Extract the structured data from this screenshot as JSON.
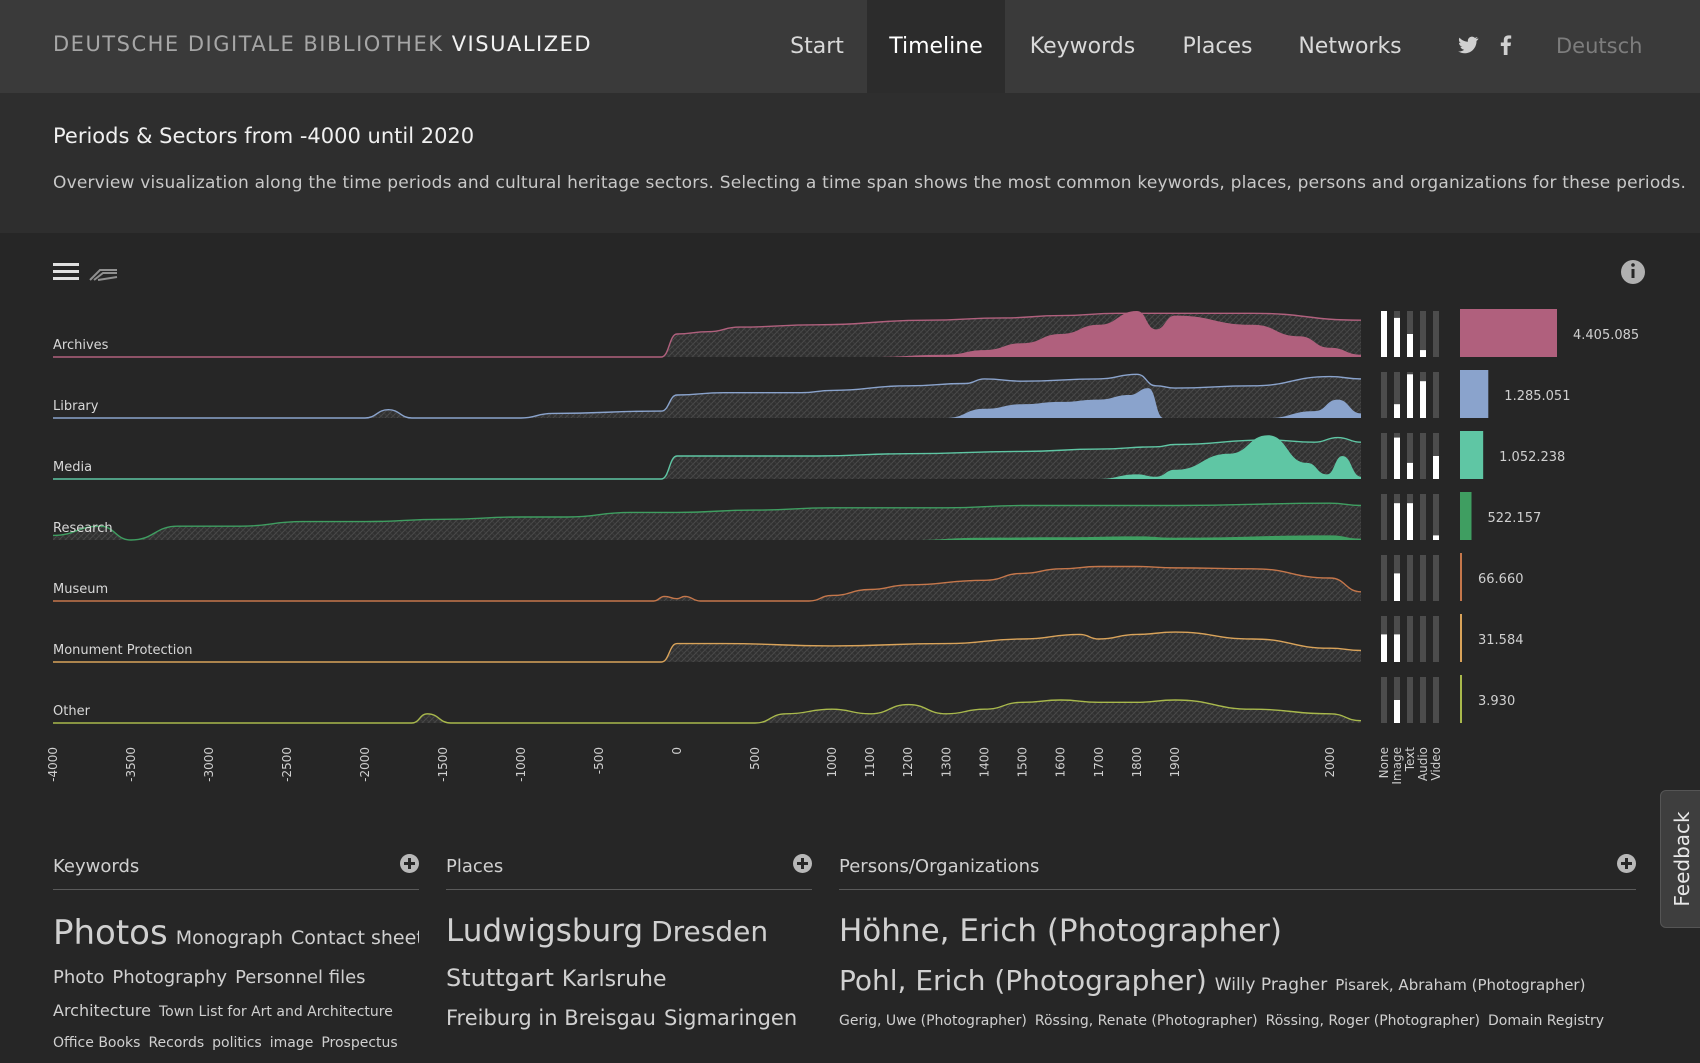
{
  "header": {
    "brand_light": "DEUTSCHE DIGITALE BIBLIOTHEK",
    "brand_strong": "VISUALIZED",
    "nav": [
      {
        "label": "Start",
        "active": false
      },
      {
        "label": "Timeline",
        "active": true
      },
      {
        "label": "Keywords",
        "active": false
      },
      {
        "label": "Places",
        "active": false
      },
      {
        "label": "Networks",
        "active": false
      }
    ],
    "social_icons": [
      "twitter-icon",
      "facebook-icon"
    ],
    "language": "Deutsch"
  },
  "intro": {
    "title": "Periods & Sectors from -4000 until 2020",
    "description": "Overview visualization along the time periods and cultural heritage sectors. Selecting a time span shows the most common keywords, places, persons and organizations for these periods."
  },
  "toolbar_icons": [
    "menu-icon",
    "stream-icon",
    "info-icon"
  ],
  "chart_data": {
    "type": "area",
    "x_ticks": [
      "-4000",
      "-3500",
      "-3000",
      "-2500",
      "-2000",
      "-1500",
      "-1000",
      "-500",
      "0",
      "500",
      "1000",
      "1100",
      "1200",
      "1300",
      "1400",
      "1500",
      "1600",
      "1700",
      "1800",
      "1900",
      "2000"
    ],
    "media_types": [
      "None",
      "Image",
      "Text",
      "Audio",
      "Video"
    ],
    "series": [
      {
        "name": "Archives",
        "color": "#b0607d",
        "total": 4405085,
        "total_label": "4.405.085",
        "media": [
          1.0,
          0.85,
          0.5,
          0.15,
          0.0
        ],
        "overview": [
          [
            -4000,
            0
          ],
          [
            -100,
            0
          ],
          [
            0,
            0.5
          ],
          [
            200,
            0.55
          ],
          [
            400,
            0.65
          ],
          [
            900,
            0.7
          ],
          [
            1250,
            0.8
          ],
          [
            1450,
            0.85
          ],
          [
            1600,
            0.9
          ],
          [
            1750,
            0.95
          ],
          [
            1850,
            0.95
          ],
          [
            1950,
            0.95
          ],
          [
            2020,
            0.8
          ]
        ],
        "selected": [
          [
            -4000,
            0
          ],
          [
            1100,
            0
          ],
          [
            1300,
            0.05
          ],
          [
            1400,
            0.15
          ],
          [
            1500,
            0.3
          ],
          [
            1600,
            0.5
          ],
          [
            1700,
            0.7
          ],
          [
            1800,
            1.0
          ],
          [
            1850,
            0.6
          ],
          [
            1900,
            0.9
          ],
          [
            1950,
            0.7
          ],
          [
            1980,
            0.45
          ],
          [
            2000,
            0.2
          ],
          [
            2020,
            0.05
          ]
        ]
      },
      {
        "name": "Library",
        "color": "#8aa3cc",
        "total": 1285051,
        "total_label": "1.285.051",
        "media": [
          0.0,
          0.3,
          0.95,
          0.8,
          0.0
        ],
        "overview": [
          [
            -4000,
            0
          ],
          [
            -2000,
            0
          ],
          [
            -1850,
            0.18
          ],
          [
            -1700,
            0
          ],
          [
            -1000,
            0
          ],
          [
            -800,
            0.1
          ],
          [
            -100,
            0.15
          ],
          [
            0,
            0.5
          ],
          [
            300,
            0.55
          ],
          [
            800,
            0.55
          ],
          [
            1000,
            0.6
          ],
          [
            1200,
            0.7
          ],
          [
            1350,
            0.75
          ],
          [
            1400,
            0.85
          ],
          [
            1500,
            0.8
          ],
          [
            1700,
            0.85
          ],
          [
            1800,
            0.95
          ],
          [
            1850,
            0.7
          ],
          [
            1900,
            0.65
          ],
          [
            1950,
            0.7
          ],
          [
            2000,
            0.9
          ],
          [
            2020,
            0.85
          ]
        ],
        "selected": [
          [
            -4000,
            0
          ],
          [
            1300,
            0
          ],
          [
            1400,
            0.2
          ],
          [
            1500,
            0.3
          ],
          [
            1600,
            0.35
          ],
          [
            1700,
            0.4
          ],
          [
            1780,
            0.5
          ],
          [
            1830,
            0.65
          ],
          [
            1870,
            0.0
          ],
          [
            1960,
            0.0
          ],
          [
            1990,
            0.15
          ],
          [
            2005,
            0.4
          ],
          [
            2020,
            0.1
          ]
        ]
      },
      {
        "name": "Media",
        "color": "#5fc6a4",
        "total": 1052238,
        "total_label": "1.052.238",
        "media": [
          0.0,
          0.9,
          0.35,
          0.0,
          0.5
        ],
        "overview": [
          [
            -4000,
            0
          ],
          [
            -100,
            0
          ],
          [
            0,
            0.5
          ],
          [
            200,
            0.5
          ],
          [
            900,
            0.5
          ],
          [
            1200,
            0.55
          ],
          [
            1500,
            0.6
          ],
          [
            1700,
            0.65
          ],
          [
            1850,
            0.7
          ],
          [
            1900,
            0.75
          ],
          [
            1960,
            0.85
          ],
          [
            1990,
            0.8
          ],
          [
            2005,
            0.9
          ],
          [
            2020,
            0.8
          ]
        ],
        "selected": [
          [
            -4000,
            0
          ],
          [
            1700,
            0
          ],
          [
            1800,
            0.1
          ],
          [
            1850,
            0.05
          ],
          [
            1900,
            0.2
          ],
          [
            1935,
            0.55
          ],
          [
            1960,
            0.95
          ],
          [
            1985,
            0.35
          ],
          [
            1998,
            0.1
          ],
          [
            2008,
            0.5
          ],
          [
            2020,
            0.05
          ]
        ]
      },
      {
        "name": "Research",
        "color": "#3f9e61",
        "total": 522157,
        "total_label": "522.157",
        "media": [
          0.0,
          0.8,
          0.8,
          0.0,
          0.1
        ],
        "overview": [
          [
            -4000,
            0.1
          ],
          [
            -3700,
            0.3
          ],
          [
            -3500,
            0
          ],
          [
            -3200,
            0.3
          ],
          [
            -2800,
            0.3
          ],
          [
            -2400,
            0.4
          ],
          [
            -2000,
            0.4
          ],
          [
            -1500,
            0.45
          ],
          [
            -1000,
            0.5
          ],
          [
            -700,
            0.5
          ],
          [
            -300,
            0.6
          ],
          [
            0,
            0.6
          ],
          [
            500,
            0.65
          ],
          [
            1000,
            0.7
          ],
          [
            1300,
            0.7
          ],
          [
            1500,
            0.75
          ],
          [
            1700,
            0.75
          ],
          [
            1800,
            0.75
          ],
          [
            1900,
            0.75
          ],
          [
            2000,
            0.8
          ],
          [
            2020,
            0.75
          ]
        ],
        "selected": [
          [
            -4000,
            0
          ],
          [
            1200,
            0
          ],
          [
            1400,
            0.05
          ],
          [
            1600,
            0.06
          ],
          [
            1800,
            0.08
          ],
          [
            1900,
            0.05
          ],
          [
            2000,
            0.1
          ],
          [
            2020,
            0.03
          ]
        ]
      },
      {
        "name": "Museum",
        "color": "#c5774b",
        "total": 66660,
        "total_label": "66.660",
        "media": [
          0.0,
          0.6,
          0.0,
          0.0,
          0.0
        ],
        "overview": [
          [
            -4000,
            0
          ],
          [
            -150,
            0
          ],
          [
            -80,
            0.1
          ],
          [
            0,
            0.05
          ],
          [
            50,
            0.1
          ],
          [
            150,
            0
          ],
          [
            850,
            0
          ],
          [
            1000,
            0.12
          ],
          [
            1100,
            0.25
          ],
          [
            1200,
            0.35
          ],
          [
            1400,
            0.45
          ],
          [
            1500,
            0.6
          ],
          [
            1600,
            0.7
          ],
          [
            1700,
            0.75
          ],
          [
            1800,
            0.75
          ],
          [
            1900,
            0.72
          ],
          [
            1950,
            0.7
          ],
          [
            2000,
            0.5
          ],
          [
            2020,
            0.2
          ]
        ],
        "selected": []
      },
      {
        "name": "Monument Protection",
        "color": "#d9a35a",
        "total": 31584,
        "total_label": "31.584",
        "media": [
          0.6,
          0.6,
          0.0,
          0.0,
          0.0
        ],
        "overview": [
          [
            -4000,
            0
          ],
          [
            -100,
            0
          ],
          [
            0,
            0.4
          ],
          [
            300,
            0.4
          ],
          [
            1000,
            0.35
          ],
          [
            1300,
            0.4
          ],
          [
            1500,
            0.5
          ],
          [
            1650,
            0.6
          ],
          [
            1700,
            0.5
          ],
          [
            1800,
            0.6
          ],
          [
            1900,
            0.65
          ],
          [
            1950,
            0.5
          ],
          [
            2000,
            0.3
          ],
          [
            2020,
            0.25
          ]
        ],
        "selected": []
      },
      {
        "name": "Other",
        "color": "#a9b94c",
        "total": 3930,
        "total_label": "3.930",
        "media": [
          0.0,
          0.5,
          0.0,
          0.0,
          0.0
        ],
        "overview": [
          [
            -4000,
            0
          ],
          [
            -1700,
            0
          ],
          [
            -1600,
            0.2
          ],
          [
            -1450,
            0
          ],
          [
            500,
            0
          ],
          [
            700,
            0.2
          ],
          [
            1000,
            0.3
          ],
          [
            1100,
            0.2
          ],
          [
            1200,
            0.4
          ],
          [
            1300,
            0.2
          ],
          [
            1400,
            0.3
          ],
          [
            1500,
            0.45
          ],
          [
            1600,
            0.5
          ],
          [
            1700,
            0.45
          ],
          [
            1800,
            0.45
          ],
          [
            1900,
            0.5
          ],
          [
            1950,
            0.3
          ],
          [
            2000,
            0.2
          ],
          [
            2020,
            0.05
          ]
        ],
        "selected": []
      }
    ]
  },
  "lists": {
    "keywords": {
      "title": "Keywords",
      "lines": [
        [
          {
            "t": "Photos",
            "s": 34
          },
          {
            "t": "Monograph",
            "s": 19
          },
          {
            "t": "Contact sheet",
            "s": 19
          }
        ],
        [
          {
            "t": "Photo",
            "s": 18
          },
          {
            "t": "Photography",
            "s": 18
          },
          {
            "t": "Personnel files",
            "s": 18
          }
        ],
        [
          {
            "t": "Architecture",
            "s": 16
          },
          {
            "t": "Town List for Art and Architecture",
            "s": 14
          }
        ],
        [
          {
            "t": "Office Books",
            "s": 14
          },
          {
            "t": "Records",
            "s": 14
          },
          {
            "t": "politics",
            "s": 14
          },
          {
            "t": "image",
            "s": 14
          },
          {
            "t": "Prospectus",
            "s": 14
          }
        ]
      ]
    },
    "places": {
      "title": "Places",
      "lines": [
        [
          {
            "t": "Ludwigsburg",
            "s": 31
          },
          {
            "t": "Dresden",
            "s": 28
          }
        ],
        [
          {
            "t": "Stuttgart",
            "s": 24
          },
          {
            "t": "Karlsruhe",
            "s": 22
          }
        ],
        [
          {
            "t": "Freiburg in Breisgau",
            "s": 21
          },
          {
            "t": "Sigmaringen",
            "s": 21
          }
        ]
      ]
    },
    "persons": {
      "title": "Persons/Organizations",
      "lines": [
        [
          {
            "t": "Höhne, Erich (Photographer)",
            "s": 31
          }
        ],
        [
          {
            "t": "Pohl, Erich (Photographer)",
            "s": 28
          },
          {
            "t": "Willy Pragher",
            "s": 17
          },
          {
            "t": "Pisarek, Abraham (Photographer)",
            "s": 15
          }
        ],
        [
          {
            "t": "Gerig, Uwe (Photographer)",
            "s": 14
          },
          {
            "t": "Rössing, Renate (Photographer)",
            "s": 14
          },
          {
            "t": "Rössing, Roger (Photographer)",
            "s": 14
          },
          {
            "t": "Domain Registry",
            "s": 14
          }
        ]
      ]
    }
  },
  "feedback_label": "Feedback"
}
